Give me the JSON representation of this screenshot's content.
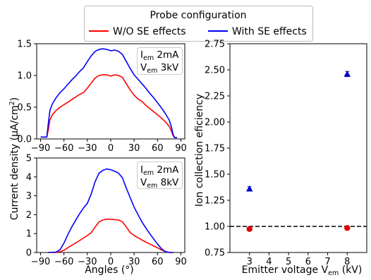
{
  "legend": {
    "title": "Probe configuration",
    "entries": [
      {
        "label": "W/O SE effects",
        "color": "#ff0000"
      },
      {
        "label": "With SE effects",
        "color": "#0000ff"
      }
    ]
  },
  "chart_data": [
    {
      "type": "line",
      "panel": "top-left",
      "annotation": [
        "I_em 2mA",
        "V_em 3kV"
      ],
      "ylabel": "Current density (µA/cm²)",
      "xlabel": "",
      "xlim": [
        -95,
        95
      ],
      "ylim": [
        0,
        1.5
      ],
      "xticks": [
        -90,
        -60,
        -30,
        0,
        30,
        60,
        90
      ],
      "yticks": [
        0.0,
        0.5,
        1.0,
        1.5
      ],
      "series": [
        {
          "name": "W/O SE effects",
          "color": "#ff0000",
          "x": [
            -90,
            -82,
            -80,
            -78,
            -75,
            -70,
            -65,
            -60,
            -55,
            -50,
            -45,
            -40,
            -35,
            -30,
            -25,
            -20,
            -15,
            -10,
            -5,
            0,
            5,
            10,
            15,
            20,
            25,
            30,
            35,
            40,
            45,
            50,
            55,
            60,
            65,
            70,
            75,
            78,
            80,
            82,
            85
          ],
          "y": [
            0.03,
            0.03,
            0.15,
            0.3,
            0.38,
            0.45,
            0.5,
            0.54,
            0.58,
            0.62,
            0.66,
            0.7,
            0.73,
            0.8,
            0.88,
            0.96,
            1.0,
            1.01,
            1.01,
            0.99,
            1.01,
            1.0,
            0.97,
            0.87,
            0.77,
            0.69,
            0.63,
            0.59,
            0.53,
            0.48,
            0.43,
            0.38,
            0.33,
            0.27,
            0.2,
            0.12,
            0.05,
            0.02,
            0.02
          ]
        },
        {
          "name": "With SE effects",
          "color": "#0000ff",
          "x": [
            -90,
            -82,
            -80,
            -78,
            -75,
            -70,
            -65,
            -60,
            -55,
            -50,
            -45,
            -40,
            -35,
            -30,
            -25,
            -20,
            -15,
            -10,
            -5,
            0,
            5,
            10,
            15,
            20,
            25,
            30,
            35,
            40,
            45,
            50,
            55,
            60,
            65,
            70,
            75,
            78,
            80,
            82,
            85
          ],
          "y": [
            0.03,
            0.03,
            0.25,
            0.45,
            0.55,
            0.65,
            0.73,
            0.79,
            0.86,
            0.93,
            0.99,
            1.06,
            1.12,
            1.22,
            1.31,
            1.38,
            1.41,
            1.42,
            1.41,
            1.39,
            1.4,
            1.38,
            1.33,
            1.22,
            1.11,
            1.01,
            0.94,
            0.87,
            0.8,
            0.72,
            0.65,
            0.57,
            0.49,
            0.4,
            0.3,
            0.18,
            0.07,
            0.02,
            0.02
          ]
        }
      ]
    },
    {
      "type": "line",
      "panel": "bottom-left",
      "annotation": [
        "I_em 2mA",
        "V_em 8kV"
      ],
      "ylabel": "",
      "xlabel": "Angles (°)",
      "xlim": [
        -95,
        95
      ],
      "ylim": [
        0,
        5
      ],
      "xticks": [
        -90,
        -60,
        -30,
        0,
        30,
        60,
        90
      ],
      "yticks": [
        0,
        1,
        2,
        3,
        4,
        5
      ],
      "series": [
        {
          "name": "W/O SE effects",
          "color": "#ff0000",
          "x": [
            -80,
            -70,
            -65,
            -60,
            -55,
            -50,
            -45,
            -40,
            -35,
            -30,
            -25,
            -20,
            -15,
            -10,
            -5,
            0,
            5,
            10,
            15,
            20,
            25,
            30,
            35,
            40,
            45,
            50,
            55,
            60,
            65,
            70,
            75,
            80
          ],
          "y": [
            0,
            0,
            0.04,
            0.12,
            0.25,
            0.38,
            0.5,
            0.63,
            0.76,
            0.9,
            1.05,
            1.35,
            1.62,
            1.72,
            1.76,
            1.76,
            1.74,
            1.72,
            1.62,
            1.35,
            1.05,
            0.9,
            0.78,
            0.66,
            0.55,
            0.45,
            0.35,
            0.25,
            0.14,
            0.05,
            0.01,
            0
          ]
        },
        {
          "name": "With SE effects",
          "color": "#0000ff",
          "x": [
            -80,
            -70,
            -65,
            -60,
            -55,
            -50,
            -45,
            -40,
            -35,
            -30,
            -25,
            -20,
            -15,
            -10,
            -5,
            0,
            5,
            10,
            15,
            20,
            25,
            30,
            35,
            40,
            45,
            50,
            55,
            60,
            65,
            70,
            75,
            80
          ],
          "y": [
            0,
            0.02,
            0.15,
            0.5,
            0.95,
            1.35,
            1.7,
            2.05,
            2.35,
            2.6,
            3.1,
            3.75,
            4.2,
            4.35,
            4.42,
            4.38,
            4.3,
            4.2,
            3.95,
            3.4,
            2.9,
            2.4,
            2.0,
            1.62,
            1.3,
            1.0,
            0.72,
            0.45,
            0.2,
            0.05,
            0,
            0
          ]
        }
      ]
    },
    {
      "type": "scatter",
      "panel": "right",
      "xlabel": "Emitter voltage V_em (kV)",
      "ylabel": "Ion collection eficiency",
      "xlim": [
        2.0,
        9.0
      ],
      "ylim": [
        0.75,
        2.75
      ],
      "xticks": [
        3,
        4,
        5,
        6,
        7,
        8
      ],
      "yticks": [
        0.75,
        1.0,
        1.25,
        1.5,
        1.75,
        2.0,
        2.25,
        2.5,
        2.75
      ],
      "reference_line": {
        "y": 1.0,
        "style": "dashed",
        "color": "#000000"
      },
      "series": [
        {
          "name": "W/O SE effects",
          "color": "#dd0000",
          "marker": "circle",
          "x": [
            3,
            8
          ],
          "y": [
            0.975,
            0.985
          ],
          "err": [
            0.01,
            0.01
          ]
        },
        {
          "name": "With SE effects",
          "color": "#0000cc",
          "marker": "triangle",
          "x": [
            3,
            8
          ],
          "y": [
            1.36,
            2.46
          ],
          "err": [
            0.02,
            0.025
          ]
        }
      ]
    }
  ]
}
